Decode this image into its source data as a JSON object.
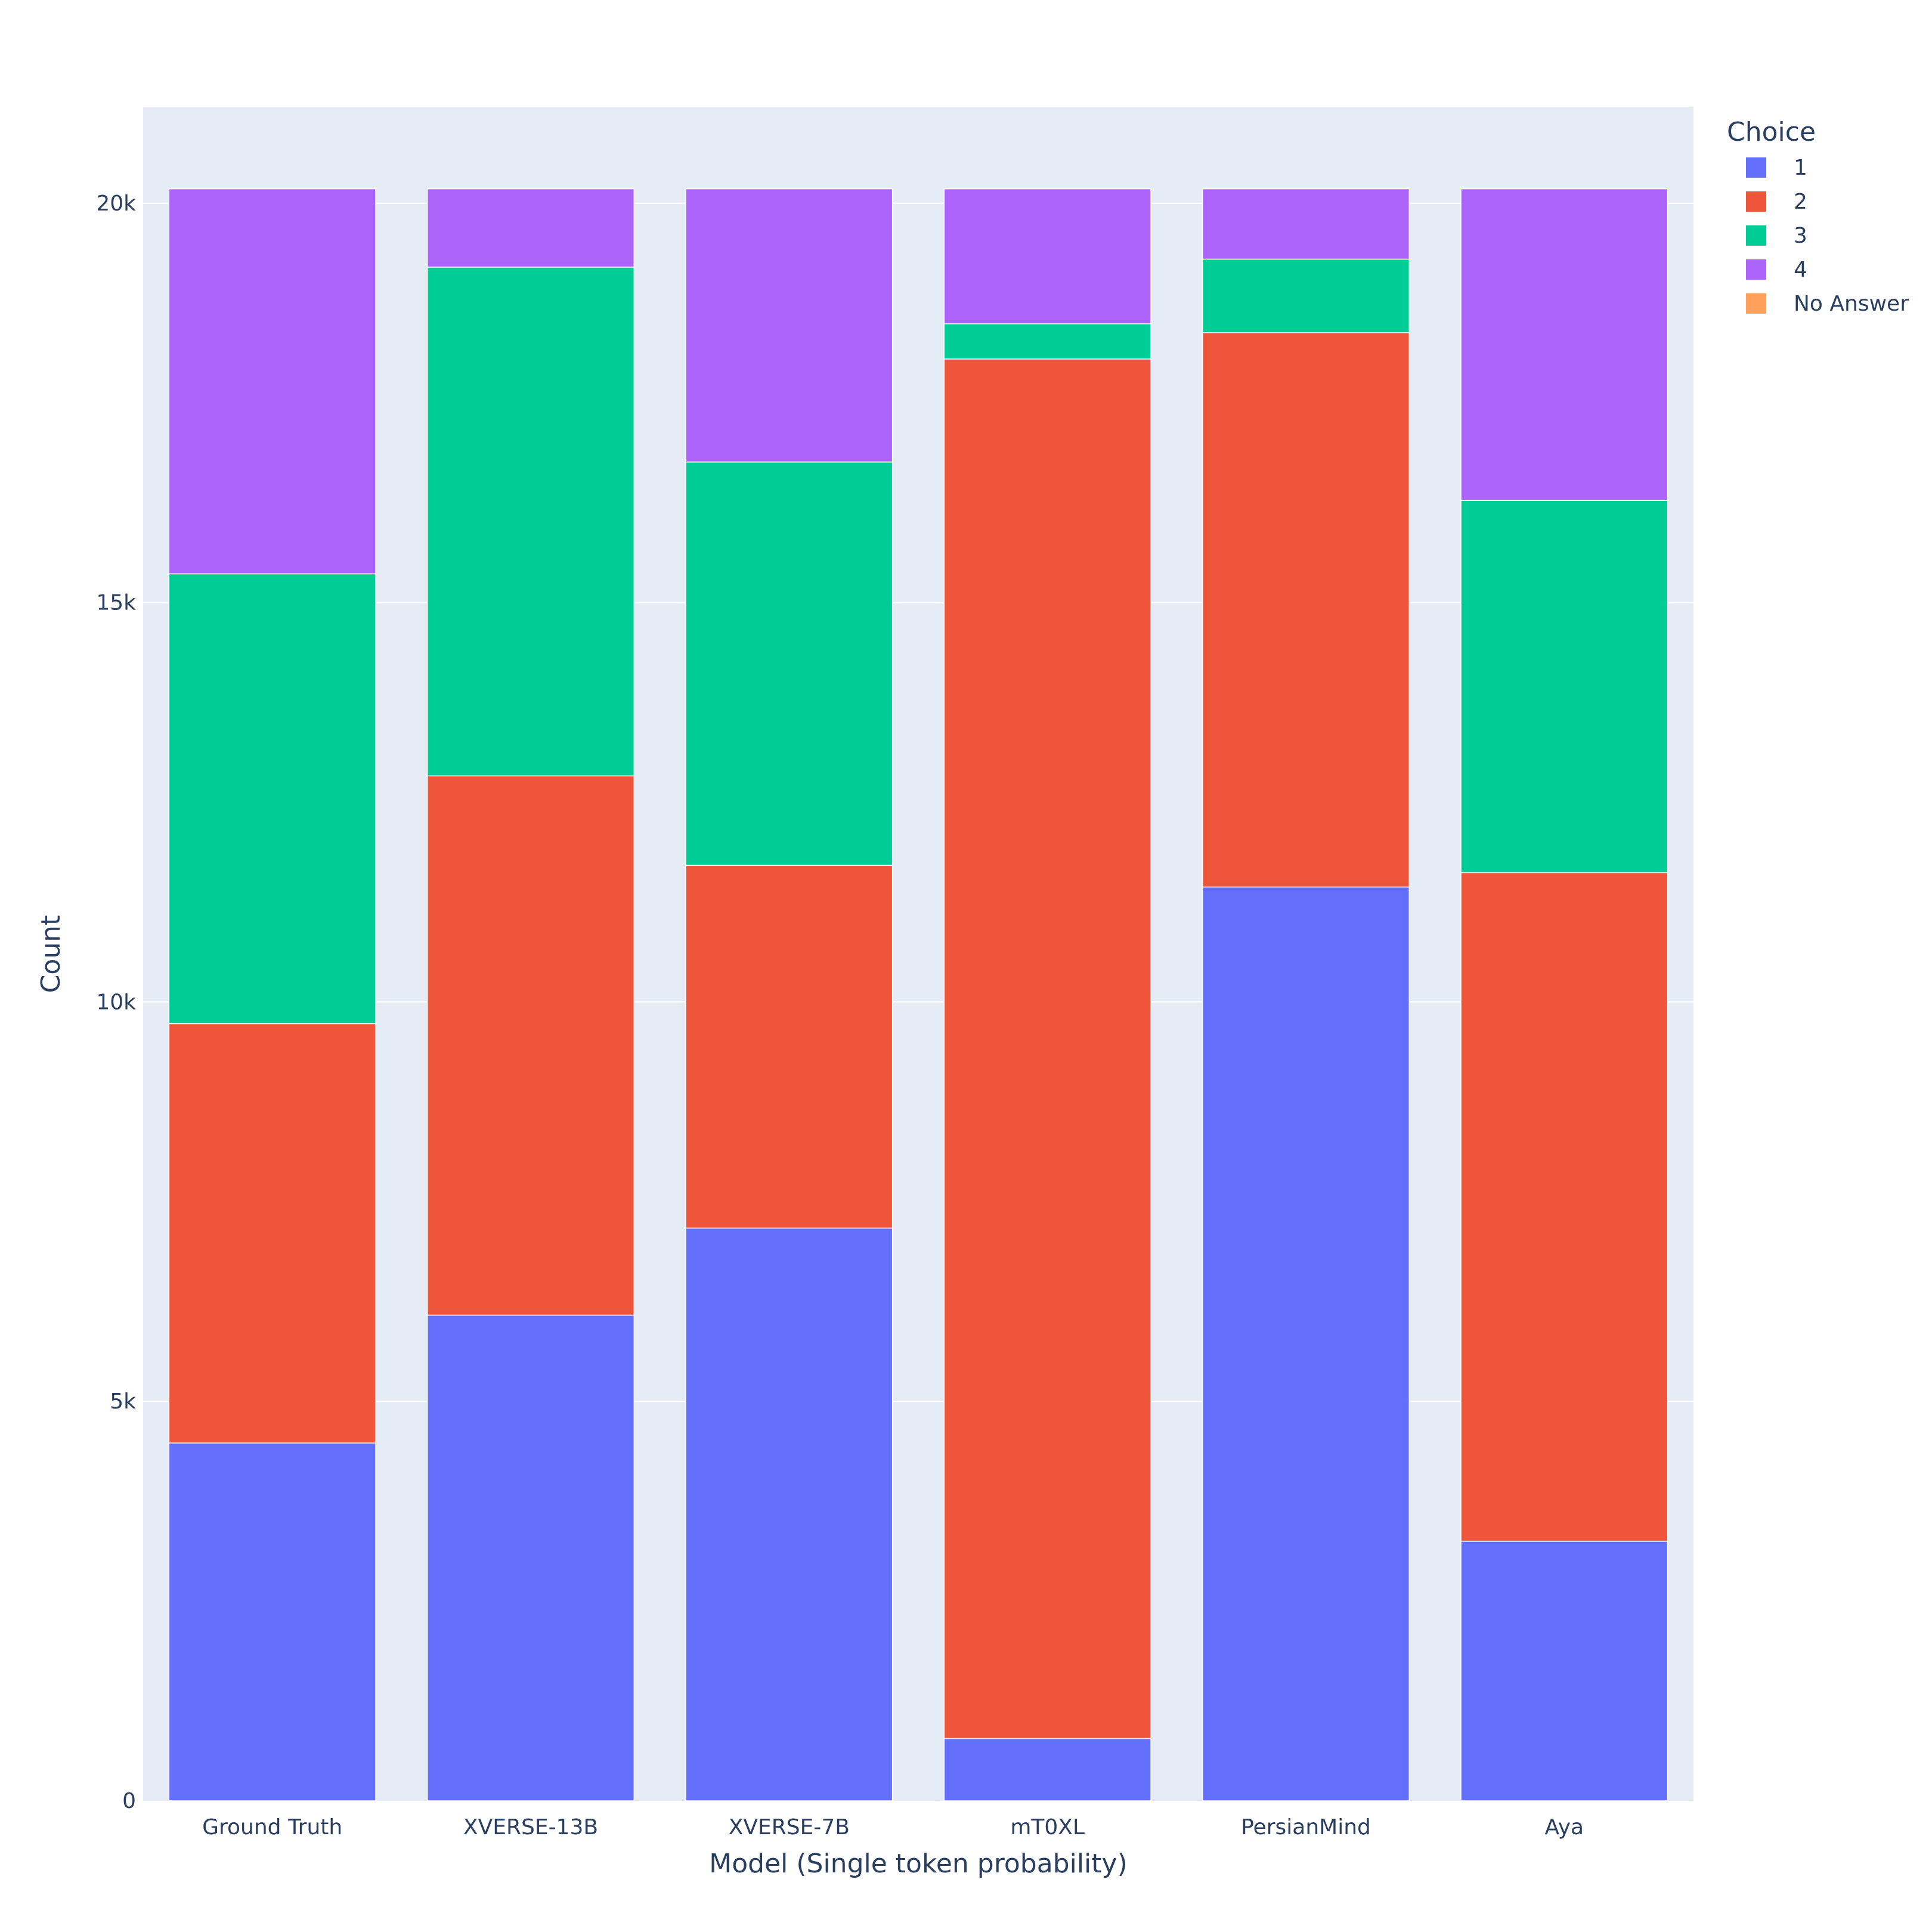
{
  "chart_data": {
    "type": "bar",
    "barmode": "stack",
    "title": "",
    "xlabel": "Model (Single token probability)",
    "ylabel": "Count",
    "ylim": [
      0,
      21200
    ],
    "yticks": [
      0,
      5000,
      10000,
      15000,
      20000
    ],
    "ytick_labels": [
      "0",
      "5k",
      "10k",
      "15k",
      "20k"
    ],
    "grid": true,
    "legend": {
      "title": "Choice",
      "placement": "top-right"
    },
    "categories": [
      "Ground Truth",
      "XVERSE-13B",
      "XVERSE-7B",
      "mT0XL",
      "PersianMind",
      "Aya"
    ],
    "series": [
      {
        "name": "1",
        "color": "#636efa",
        "values": [
          4480,
          6080,
          7170,
          780,
          11440,
          3250
        ]
      },
      {
        "name": "2",
        "color": "#ef553b",
        "values": [
          5250,
          6750,
          4540,
          17270,
          6940,
          8370
        ]
      },
      {
        "name": "3",
        "color": "#00cc96",
        "values": [
          5630,
          6370,
          5050,
          440,
          920,
          4660
        ]
      },
      {
        "name": "4",
        "color": "#ab63fa",
        "values": [
          4820,
          980,
          3420,
          1690,
          880,
          3900
        ]
      },
      {
        "name": "No Answer",
        "color": "#ffa15a",
        "values": [
          0,
          0,
          0,
          0,
          0,
          0
        ]
      }
    ]
  }
}
